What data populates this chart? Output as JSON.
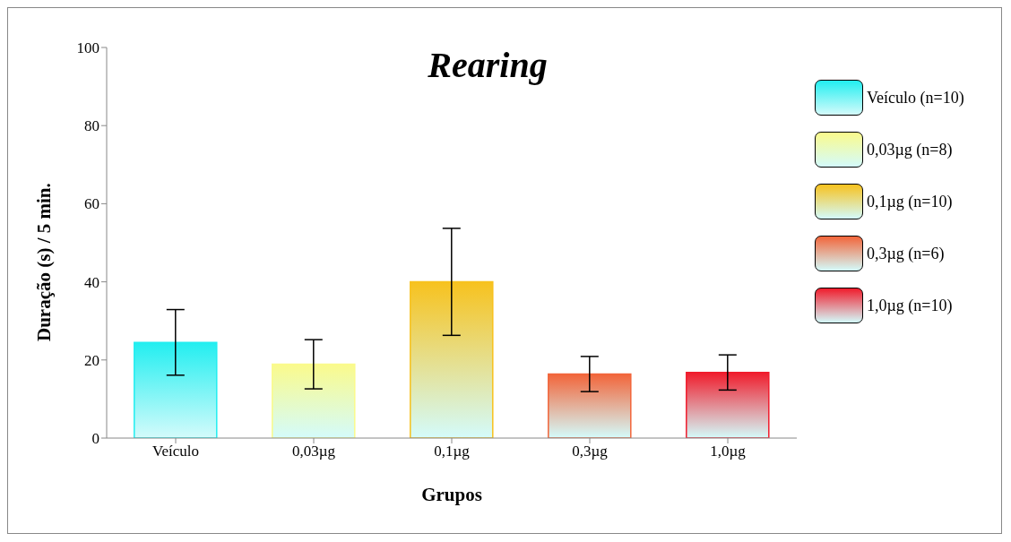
{
  "chart_data": {
    "type": "bar",
    "title": "Rearing",
    "xlabel": "Grupos",
    "ylabel": "Duração (s) / 5 min.",
    "categories": [
      "Veículo",
      "0,03µg",
      "0,1µg",
      "0,3µg",
      "1,0µg"
    ],
    "stacked": true,
    "series": [
      {
        "name": "Veículo (n=10)",
        "color": "#22eef0",
        "values": [
          24.5,
          null,
          null,
          null,
          null
        ],
        "errors": [
          8.4,
          null,
          null,
          null,
          null
        ]
      },
      {
        "name": "0,03µg (n=8)",
        "color": "#fafa8c",
        "values": [
          null,
          18.9,
          null,
          null,
          null
        ],
        "errors": [
          null,
          6.3,
          null,
          null,
          null
        ]
      },
      {
        "name": "0,1µg (n=10)",
        "color": "#f7c21e",
        "values": [
          null,
          null,
          40,
          null,
          null
        ],
        "errors": [
          null,
          null,
          13.7,
          null,
          null
        ]
      },
      {
        "name": "0,3µg (n=6)",
        "color": "#f2653a",
        "values": [
          null,
          null,
          null,
          16.4,
          null
        ],
        "errors": [
          null,
          null,
          null,
          4.5,
          null
        ]
      },
      {
        "name": "1,0µg (n=10)",
        "color": "#f01c2c",
        "values": [
          null,
          null,
          null,
          null,
          16.8
        ],
        "errors": [
          null,
          null,
          null,
          null,
          4.5
        ]
      }
    ],
    "ylim": [
      0,
      100
    ],
    "yticks": [
      0,
      20,
      40,
      60,
      80,
      100
    ],
    "grid": false,
    "legend": "right"
  }
}
